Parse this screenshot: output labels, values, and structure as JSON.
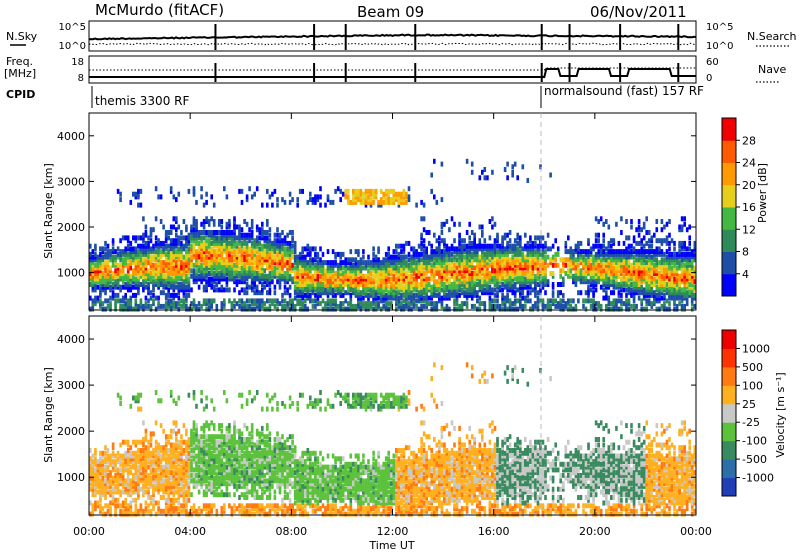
{
  "header": {
    "station": "McMurdo (fitACF)",
    "beam": "Beam 09",
    "date": "06/Nov/2011"
  },
  "strip": {
    "left_top_label": "N.Sky",
    "left_top_ticks": [
      "10^5",
      "10^0"
    ],
    "right_top_label": "N.Search",
    "right_top_ticks": [
      "10^5",
      "10^0"
    ],
    "left_freq_label_1": "Freq.",
    "left_freq_label_2": "[MHz]",
    "left_freq_ticks": [
      "18",
      "8"
    ],
    "right_freq_label": "Nave",
    "right_freq_ticks": [
      "60",
      "0"
    ],
    "cpid_label": "CPID",
    "cpid_modes": [
      "themis 3300 RF",
      "normalsound (fast) 157 RF"
    ]
  },
  "chart_data": [
    {
      "type": "heatmap",
      "title": "",
      "ylabel": "Slant Range [km]",
      "xlabel": "",
      "ylim": [
        180,
        4500
      ],
      "yticks": [
        1000,
        2000,
        3000,
        4000
      ],
      "x_ticks": [
        "00:00",
        "04:00",
        "08:00",
        "12:00",
        "16:00",
        "20:00",
        "00:00"
      ],
      "colorbar": {
        "label": "Power [dB]",
        "ticks": [
          "4",
          "8",
          "12",
          "16",
          "20",
          "24",
          "28"
        ],
        "colors": [
          "#0000ff",
          "#1e4fa8",
          "#2f8a5a",
          "#43b843",
          "#e6cf1a",
          "#ff9a00",
          "#ff5a00",
          "#f00000"
        ]
      }
    },
    {
      "type": "heatmap",
      "title": "",
      "ylabel": "Slant Range [km]",
      "xlabel": "Time UT",
      "ylim": [
        180,
        4500
      ],
      "yticks": [
        1000,
        2000,
        3000,
        4000
      ],
      "x_ticks": [
        "00:00",
        "04:00",
        "08:00",
        "12:00",
        "16:00",
        "20:00",
        "00:00"
      ],
      "colorbar": {
        "label": "Velocity [m s⁻¹]",
        "ticks": [
          "1000",
          "500",
          "100",
          "25",
          "-25",
          "-100",
          "-500",
          "-1000"
        ],
        "colors": [
          "#1f3fb8",
          "#2c6fa8",
          "#3a8a5f",
          "#5cc23c",
          "#c8c8c8",
          "#ffb020",
          "#ff7a10",
          "#ff3300",
          "#ee0000"
        ]
      }
    }
  ]
}
